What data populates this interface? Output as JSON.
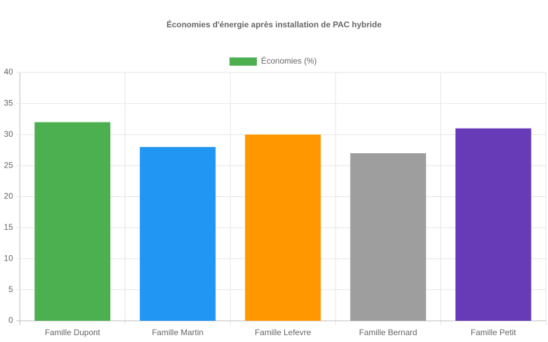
{
  "chart_data": {
    "type": "bar",
    "title": "Économies d'énergie après installation de PAC hybride",
    "categories": [
      "Famille Dupont",
      "Famille Martin",
      "Famille Lefevre",
      "Famille Bernard",
      "Famille Petit"
    ],
    "series": [
      {
        "name": "Économies (%)",
        "colors": [
          "#4caf50",
          "#2196f3",
          "#ff9800",
          "#9e9e9e",
          "#673ab7"
        ],
        "values": [
          32,
          28,
          30,
          27,
          31
        ]
      }
    ],
    "ylim": [
      0,
      40
    ],
    "yticks": [
      0,
      5,
      10,
      15,
      20,
      25,
      30,
      35,
      40
    ],
    "grid": true,
    "legend": "top"
  }
}
